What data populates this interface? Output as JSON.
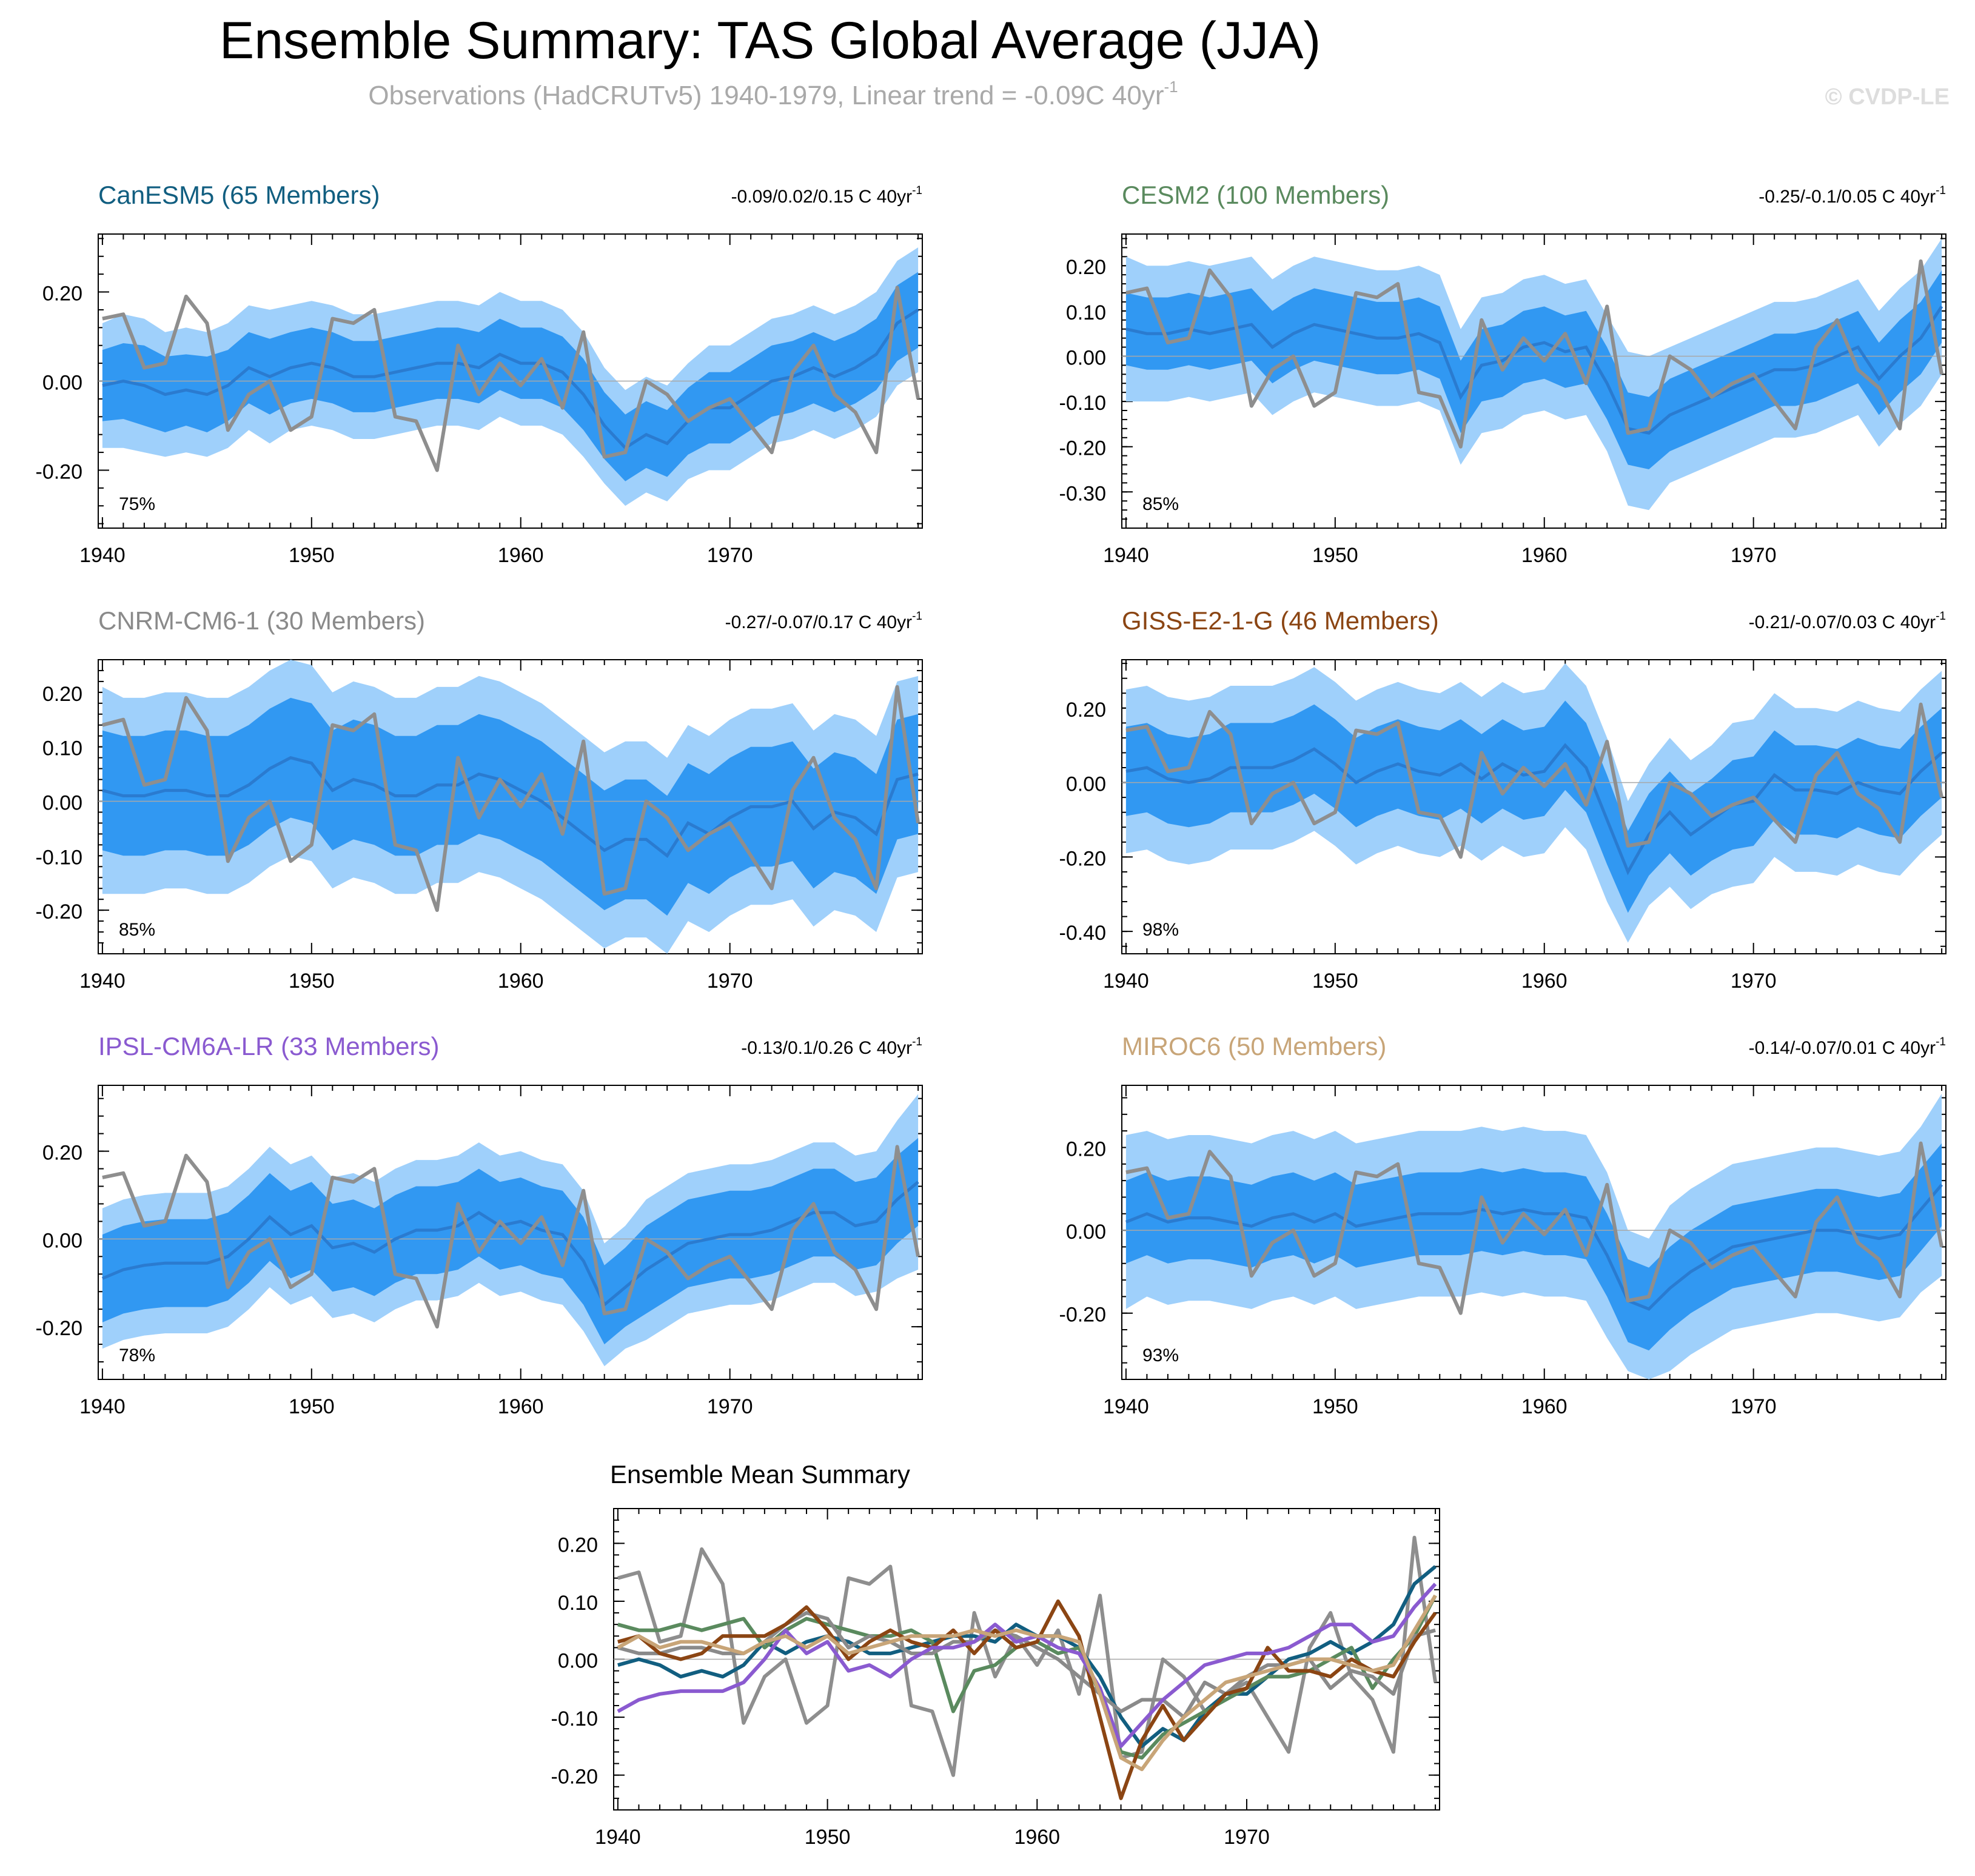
{
  "title": "Ensemble Summary: TAS Global Average (JJA)",
  "subtitle": "Observations (HadCRUTv5) 1940-1979, Linear trend = -0.09C 40yr",
  "subtitle_sup": "-1",
  "watermark": "© CVDP-LE",
  "colors": {
    "band_outer": "#9fd0fb",
    "band_inner": "#3198f2",
    "ens_mean": "#2a7bd0",
    "obs": "#8e8e8e",
    "zero_line": "#a8a8a8",
    "axis": "#000000"
  },
  "chart_data": {
    "type": "line",
    "years": [
      1940,
      1941,
      1942,
      1943,
      1944,
      1945,
      1946,
      1947,
      1948,
      1949,
      1950,
      1951,
      1952,
      1953,
      1954,
      1955,
      1956,
      1957,
      1958,
      1959,
      1960,
      1961,
      1962,
      1963,
      1964,
      1965,
      1966,
      1967,
      1968,
      1969,
      1970,
      1971,
      1972,
      1973,
      1974,
      1975,
      1976,
      1977,
      1978,
      1979
    ],
    "x_ticks": [
      1940,
      1950,
      1960,
      1970
    ],
    "observations": {
      "name": "HadCRUTv5",
      "values": [
        0.14,
        0.15,
        0.03,
        0.04,
        0.19,
        0.13,
        -0.11,
        -0.03,
        0.0,
        -0.11,
        -0.08,
        0.14,
        0.13,
        0.16,
        -0.08,
        -0.09,
        -0.2,
        0.08,
        -0.03,
        0.04,
        -0.01,
        0.05,
        -0.06,
        0.11,
        -0.17,
        -0.16,
        0.0,
        -0.03,
        -0.09,
        -0.06,
        -0.04,
        -0.1,
        -0.16,
        0.02,
        0.08,
        -0.03,
        -0.07,
        -0.16,
        0.21,
        -0.04
      ]
    },
    "panels": [
      {
        "model": "CanESM5",
        "members_label": "CanESM5 (65 Members)",
        "title_color": "#115e80",
        "trend_label": "-0.09/0.02/0.15 C 40yr",
        "trend_sup": "-1",
        "pct_label": "75%",
        "ylim": [
          -0.33,
          0.33
        ],
        "y_ticks": [
          -0.2,
          0.0,
          0.2
        ],
        "y_tick_labels": [
          "-0.20",
          "0.00",
          "0.20"
        ],
        "mean": [
          -0.01,
          -0.0,
          -0.01,
          -0.03,
          -0.02,
          -0.03,
          -0.01,
          0.03,
          0.01,
          0.03,
          0.04,
          0.03,
          0.01,
          0.01,
          0.02,
          0.03,
          0.04,
          0.04,
          0.03,
          0.06,
          0.04,
          0.04,
          0.02,
          -0.03,
          -0.1,
          -0.15,
          -0.12,
          -0.14,
          -0.09,
          -0.06,
          -0.06,
          -0.03,
          0.0,
          0.01,
          0.03,
          0.01,
          0.03,
          0.06,
          0.13,
          0.16
        ],
        "inner_half": [
          0.08,
          0.085,
          0.09,
          0.085,
          0.08,
          0.085,
          0.08,
          0.08,
          0.085,
          0.08,
          0.08,
          0.08,
          0.08,
          0.08,
          0.08,
          0.08,
          0.08,
          0.08,
          0.08,
          0.08,
          0.08,
          0.08,
          0.08,
          0.08,
          0.075,
          0.075,
          0.075,
          0.075,
          0.075,
          0.08,
          0.08,
          0.08,
          0.08,
          0.08,
          0.08,
          0.08,
          0.08,
          0.08,
          0.085,
          0.085
        ],
        "outer_half": [
          0.14,
          0.15,
          0.15,
          0.14,
          0.14,
          0.14,
          0.14,
          0.14,
          0.15,
          0.14,
          0.14,
          0.14,
          0.14,
          0.14,
          0.14,
          0.14,
          0.14,
          0.14,
          0.14,
          0.14,
          0.14,
          0.14,
          0.14,
          0.14,
          0.13,
          0.13,
          0.13,
          0.13,
          0.13,
          0.14,
          0.14,
          0.14,
          0.14,
          0.14,
          0.14,
          0.14,
          0.14,
          0.14,
          0.14,
          0.14
        ]
      },
      {
        "model": "CESM2",
        "members_label": "CESM2 (100 Members)",
        "title_color": "#5a8a5e",
        "trend_label": "-0.25/-0.1/0.05 C 40yr",
        "trend_sup": "-1",
        "pct_label": "85%",
        "ylim": [
          -0.38,
          0.27
        ],
        "y_ticks": [
          -0.3,
          -0.2,
          -0.1,
          0.0,
          0.1,
          0.2
        ],
        "y_tick_labels": [
          "-0.30",
          "-0.20",
          "-0.10",
          "0.00",
          "0.10",
          "0.20"
        ],
        "mean": [
          0.06,
          0.05,
          0.05,
          0.06,
          0.05,
          0.06,
          0.07,
          0.02,
          0.05,
          0.07,
          0.06,
          0.05,
          0.04,
          0.04,
          0.05,
          0.03,
          -0.09,
          -0.02,
          -0.01,
          0.02,
          0.03,
          0.01,
          0.02,
          -0.06,
          -0.16,
          -0.17,
          -0.13,
          -0.11,
          -0.09,
          -0.07,
          -0.05,
          -0.03,
          -0.03,
          -0.02,
          0.0,
          0.02,
          -0.05,
          0.0,
          0.04,
          0.11
        ],
        "inner_half": [
          0.08,
          0.08,
          0.08,
          0.08,
          0.08,
          0.08,
          0.08,
          0.08,
          0.08,
          0.08,
          0.08,
          0.08,
          0.08,
          0.08,
          0.08,
          0.08,
          0.08,
          0.08,
          0.08,
          0.08,
          0.08,
          0.08,
          0.08,
          0.08,
          0.08,
          0.08,
          0.08,
          0.08,
          0.08,
          0.08,
          0.08,
          0.08,
          0.08,
          0.08,
          0.08,
          0.08,
          0.08,
          0.08,
          0.08,
          0.08
        ],
        "outer_half": [
          0.16,
          0.15,
          0.15,
          0.15,
          0.15,
          0.15,
          0.15,
          0.15,
          0.15,
          0.15,
          0.15,
          0.15,
          0.15,
          0.15,
          0.15,
          0.15,
          0.15,
          0.15,
          0.15,
          0.15,
          0.15,
          0.15,
          0.15,
          0.15,
          0.17,
          0.17,
          0.15,
          0.15,
          0.15,
          0.15,
          0.15,
          0.15,
          0.15,
          0.15,
          0.15,
          0.15,
          0.15,
          0.15,
          0.15,
          0.15
        ]
      },
      {
        "model": "CNRM-CM6-1",
        "members_label": "CNRM-CM6-1 (30 Members)",
        "title_color": "#8a8a8a",
        "trend_label": "-0.27/-0.07/0.17 C 40yr",
        "trend_sup": "-1",
        "pct_label": "85%",
        "ylim": [
          -0.28,
          0.26
        ],
        "y_ticks": [
          -0.2,
          -0.1,
          0.0,
          0.1,
          0.2
        ],
        "y_tick_labels": [
          "-0.20",
          "-0.10",
          "0.00",
          "0.10",
          "0.20"
        ],
        "mean": [
          0.02,
          0.01,
          0.01,
          0.02,
          0.02,
          0.01,
          0.01,
          0.03,
          0.06,
          0.08,
          0.07,
          0.02,
          0.04,
          0.03,
          0.01,
          0.01,
          0.03,
          0.03,
          0.05,
          0.04,
          0.02,
          0.0,
          -0.03,
          -0.06,
          -0.09,
          -0.07,
          -0.07,
          -0.1,
          -0.04,
          -0.06,
          -0.03,
          -0.01,
          -0.01,
          0.0,
          -0.05,
          -0.02,
          -0.03,
          -0.06,
          0.04,
          0.05
        ],
        "inner_half": [
          0.11,
          0.11,
          0.11,
          0.11,
          0.11,
          0.11,
          0.11,
          0.11,
          0.11,
          0.11,
          0.11,
          0.11,
          0.11,
          0.11,
          0.11,
          0.11,
          0.11,
          0.11,
          0.11,
          0.11,
          0.11,
          0.11,
          0.11,
          0.11,
          0.11,
          0.11,
          0.11,
          0.11,
          0.11,
          0.11,
          0.11,
          0.11,
          0.11,
          0.11,
          0.11,
          0.11,
          0.11,
          0.11,
          0.11,
          0.11
        ],
        "outer_half": [
          0.19,
          0.18,
          0.18,
          0.18,
          0.18,
          0.18,
          0.18,
          0.18,
          0.18,
          0.18,
          0.18,
          0.18,
          0.18,
          0.18,
          0.18,
          0.18,
          0.18,
          0.18,
          0.18,
          0.18,
          0.18,
          0.18,
          0.18,
          0.18,
          0.18,
          0.18,
          0.18,
          0.18,
          0.18,
          0.18,
          0.18,
          0.18,
          0.18,
          0.18,
          0.18,
          0.18,
          0.18,
          0.18,
          0.18,
          0.18
        ]
      },
      {
        "model": "GISS-E2-1-G",
        "members_label": "GISS-E2-1-G (46 Members)",
        "title_color": "#8b4513",
        "trend_label": "-0.21/-0.07/0.03 C 40yr",
        "trend_sup": "-1",
        "pct_label": "98%",
        "ylim": [
          -0.46,
          0.33
        ],
        "y_ticks": [
          -0.4,
          -0.2,
          0.0,
          0.2
        ],
        "y_tick_labels": [
          "-0.40",
          "-0.20",
          "0.00",
          "0.20"
        ],
        "mean": [
          0.03,
          0.04,
          0.01,
          0.0,
          0.01,
          0.04,
          0.04,
          0.04,
          0.06,
          0.09,
          0.05,
          0.0,
          0.03,
          0.05,
          0.03,
          0.02,
          0.05,
          0.01,
          0.05,
          0.02,
          0.03,
          0.1,
          0.04,
          -0.1,
          -0.24,
          -0.14,
          -0.08,
          -0.14,
          -0.1,
          -0.06,
          -0.05,
          0.02,
          -0.02,
          -0.02,
          -0.03,
          0.0,
          -0.02,
          -0.03,
          0.03,
          0.08
        ],
        "inner_half": [
          0.12,
          0.12,
          0.12,
          0.12,
          0.12,
          0.12,
          0.12,
          0.12,
          0.12,
          0.12,
          0.12,
          0.12,
          0.12,
          0.12,
          0.12,
          0.12,
          0.12,
          0.12,
          0.12,
          0.12,
          0.12,
          0.12,
          0.12,
          0.12,
          0.11,
          0.11,
          0.11,
          0.11,
          0.11,
          0.12,
          0.12,
          0.12,
          0.12,
          0.12,
          0.12,
          0.12,
          0.12,
          0.12,
          0.12,
          0.12
        ],
        "outer_half": [
          0.22,
          0.22,
          0.22,
          0.22,
          0.22,
          0.22,
          0.22,
          0.22,
          0.22,
          0.22,
          0.22,
          0.22,
          0.22,
          0.22,
          0.22,
          0.22,
          0.22,
          0.22,
          0.22,
          0.22,
          0.22,
          0.22,
          0.22,
          0.22,
          0.19,
          0.19,
          0.2,
          0.2,
          0.2,
          0.22,
          0.22,
          0.22,
          0.22,
          0.22,
          0.22,
          0.22,
          0.22,
          0.22,
          0.22,
          0.22
        ]
      },
      {
        "model": "IPSL-CM6A-LR",
        "members_label": "IPSL-CM6A-LR (33 Members)",
        "title_color": "#8a5ad0",
        "trend_label": "-0.13/0.1/0.26 C 40yr",
        "trend_sup": "-1",
        "pct_label": "78%",
        "ylim": [
          -0.32,
          0.35
        ],
        "y_ticks": [
          -0.2,
          0.0,
          0.2
        ],
        "y_tick_labels": [
          "-0.20",
          "0.00",
          "0.20"
        ],
        "mean": [
          -0.09,
          -0.07,
          -0.06,
          -0.055,
          -0.055,
          -0.055,
          -0.04,
          0.0,
          0.05,
          0.01,
          0.03,
          -0.02,
          -0.01,
          -0.03,
          0.0,
          0.02,
          0.02,
          0.03,
          0.06,
          0.03,
          0.04,
          0.02,
          0.01,
          -0.05,
          -0.15,
          -0.11,
          -0.07,
          -0.04,
          -0.01,
          0.0,
          0.01,
          0.01,
          0.02,
          0.04,
          0.06,
          0.06,
          0.03,
          0.04,
          0.09,
          0.13
        ],
        "inner_half": [
          0.1,
          0.1,
          0.1,
          0.1,
          0.1,
          0.1,
          0.1,
          0.1,
          0.1,
          0.1,
          0.1,
          0.1,
          0.1,
          0.1,
          0.1,
          0.1,
          0.1,
          0.1,
          0.1,
          0.1,
          0.1,
          0.1,
          0.1,
          0.1,
          0.09,
          0.09,
          0.1,
          0.1,
          0.1,
          0.1,
          0.1,
          0.1,
          0.1,
          0.1,
          0.1,
          0.1,
          0.1,
          0.1,
          0.1,
          0.1
        ],
        "outer_half": [
          0.16,
          0.16,
          0.16,
          0.16,
          0.16,
          0.16,
          0.16,
          0.16,
          0.16,
          0.16,
          0.16,
          0.16,
          0.16,
          0.16,
          0.16,
          0.16,
          0.16,
          0.16,
          0.16,
          0.16,
          0.16,
          0.16,
          0.16,
          0.16,
          0.14,
          0.14,
          0.16,
          0.16,
          0.16,
          0.16,
          0.16,
          0.16,
          0.16,
          0.16,
          0.16,
          0.16,
          0.16,
          0.16,
          0.18,
          0.2
        ]
      },
      {
        "model": "MIROC6",
        "members_label": "MIROC6 (50 Members)",
        "title_color": "#c8a578",
        "trend_label": "-0.14/-0.07/0.01 C 40yr",
        "trend_sup": "-1",
        "pct_label": "93%",
        "ylim": [
          -0.36,
          0.35
        ],
        "y_ticks": [
          -0.2,
          0.0,
          0.2
        ],
        "y_tick_labels": [
          "-0.20",
          "0.00",
          "0.20"
        ],
        "mean": [
          0.02,
          0.04,
          0.02,
          0.03,
          0.03,
          0.02,
          0.01,
          0.03,
          0.04,
          0.02,
          0.04,
          0.01,
          0.02,
          0.03,
          0.04,
          0.04,
          0.04,
          0.05,
          0.04,
          0.05,
          0.04,
          0.04,
          0.03,
          -0.06,
          -0.17,
          -0.19,
          -0.14,
          -0.1,
          -0.07,
          -0.04,
          -0.03,
          -0.02,
          -0.01,
          0.0,
          0.0,
          -0.01,
          -0.02,
          -0.01,
          0.05,
          0.11
        ],
        "inner_half": [
          0.1,
          0.1,
          0.1,
          0.1,
          0.1,
          0.1,
          0.1,
          0.1,
          0.1,
          0.1,
          0.1,
          0.1,
          0.1,
          0.1,
          0.1,
          0.1,
          0.1,
          0.1,
          0.1,
          0.1,
          0.1,
          0.1,
          0.1,
          0.1,
          0.1,
          0.1,
          0.1,
          0.1,
          0.1,
          0.1,
          0.1,
          0.1,
          0.1,
          0.1,
          0.1,
          0.1,
          0.1,
          0.1,
          0.1,
          0.1
        ],
        "outer_half": [
          0.21,
          0.2,
          0.2,
          0.2,
          0.2,
          0.2,
          0.2,
          0.2,
          0.2,
          0.2,
          0.2,
          0.2,
          0.2,
          0.2,
          0.2,
          0.2,
          0.2,
          0.2,
          0.2,
          0.2,
          0.2,
          0.2,
          0.2,
          0.2,
          0.17,
          0.17,
          0.2,
          0.2,
          0.2,
          0.2,
          0.2,
          0.2,
          0.2,
          0.2,
          0.2,
          0.2,
          0.2,
          0.2,
          0.2,
          0.22
        ]
      }
    ],
    "summary": {
      "title": "Ensemble Mean Summary",
      "ylim": [
        -0.26,
        0.26
      ],
      "y_ticks": [
        -0.2,
        -0.1,
        0.0,
        0.1,
        0.2
      ],
      "y_tick_labels": [
        "-0.20",
        "-0.10",
        "0.00",
        "0.10",
        "0.20"
      ],
      "series": [
        "CanESM5",
        "CESM2",
        "CNRM-CM6-1",
        "GISS-E2-1-G",
        "IPSL-CM6A-LR",
        "MIROC6",
        "Observations"
      ]
    }
  }
}
